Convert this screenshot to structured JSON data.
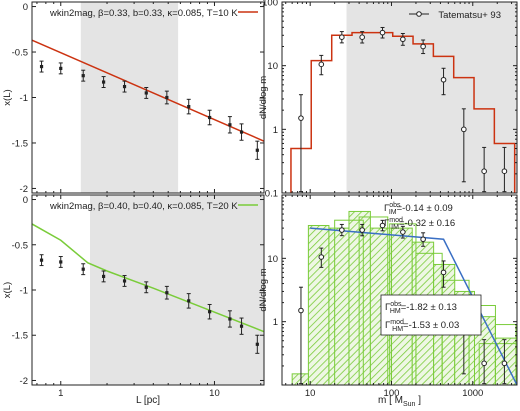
{
  "chart_data": [
    {
      "id": "top_left",
      "type": "scatter",
      "legend": {
        "label": "wkin2mag, β=0.33, b=0.33, κ=0.085, T=10 K",
        "color": "#cc3311",
        "placement": "top"
      },
      "ylabel": "x(L)",
      "xscale": "log",
      "xlim": [
        0.65,
        21
      ],
      "ylim": [
        -2.05,
        0.05
      ],
      "yticks": [
        "0",
        "-0.5",
        "-1",
        "-1.5",
        "-2"
      ],
      "yticks_values": [
        0,
        -0.5,
        -1,
        -1.5,
        -2
      ],
      "xticks_values": [
        1,
        10
      ],
      "shaded_range": [
        1.35,
        5.8
      ],
      "model_line": {
        "x": [
          0.65,
          21
        ],
        "y": [
          -0.37,
          -1.48
        ]
      },
      "points": {
        "x": [
          0.75,
          1.0,
          1.4,
          1.9,
          2.6,
          3.6,
          4.9,
          6.8,
          9.3,
          12.6,
          15.0,
          19.0
        ],
        "y": [
          -0.66,
          -0.68,
          -0.76,
          -0.83,
          -0.88,
          -0.95,
          -1.0,
          -1.1,
          -1.22,
          -1.3,
          -1.38,
          -1.58
        ],
        "err": [
          0.06,
          0.06,
          0.06,
          0.06,
          0.06,
          0.06,
          0.07,
          0.08,
          0.08,
          0.09,
          0.09,
          0.1
        ]
      }
    },
    {
      "id": "bottom_left",
      "type": "scatter",
      "legend": {
        "label": "wkin2mag, β=0.40, b=0.40, κ=0.085, T=20 K",
        "color": "#7acc3a",
        "placement": "top"
      },
      "xlabel": "L   [pc]",
      "ylabel": "x(L)",
      "xscale": "log",
      "xlim": [
        0.65,
        21
      ],
      "ylim": [
        -2.05,
        0.05
      ],
      "yticks": [
        "0",
        "-0.5",
        "-1",
        "-1.5",
        "-2"
      ],
      "yticks_values": [
        0,
        -0.5,
        -1,
        -1.5,
        -2
      ],
      "xticks": [
        "1",
        "10"
      ],
      "xticks_values": [
        1,
        10
      ],
      "shaded_range": [
        1.55,
        21
      ],
      "model_line": {
        "x": [
          0.65,
          1.0,
          1.5,
          2.0,
          4.0,
          8.0,
          21
        ],
        "y": [
          -0.27,
          -0.45,
          -0.7,
          -0.79,
          -0.98,
          -1.18,
          -1.46
        ]
      },
      "points": {
        "x": [
          0.75,
          1.0,
          1.4,
          1.9,
          2.6,
          3.6,
          4.9,
          6.8,
          9.3,
          12.6,
          15.0,
          19.0
        ],
        "y": [
          -0.67,
          -0.69,
          -0.77,
          -0.85,
          -0.9,
          -0.97,
          -1.03,
          -1.12,
          -1.24,
          -1.32,
          -1.4,
          -1.6
        ],
        "err": [
          0.06,
          0.06,
          0.06,
          0.06,
          0.06,
          0.06,
          0.07,
          0.08,
          0.08,
          0.09,
          0.09,
          0.1
        ]
      }
    },
    {
      "id": "top_right",
      "type": "line",
      "ylabel": "dN/dlog m",
      "xscale": "log",
      "yscale": "log",
      "xlim": [
        4.5,
        3500
      ],
      "ylim": [
        0.1,
        100
      ],
      "yticks": [
        "100",
        "10",
        "1",
        "0.1"
      ],
      "yticks_values": [
        100,
        10,
        1,
        0.1
      ],
      "xticks_values": [
        10,
        100,
        1000
      ],
      "shaded_range": [
        28,
        3500
      ],
      "legend": {
        "label": "Tatematsu+ 93",
        "placement": "top-right"
      },
      "model_hist": {
        "color": "#cc3311",
        "edges": [
          5.8,
          10.3,
          18.4,
          32.7,
          58.2,
          103.6,
          184.2,
          327.6,
          582.7,
          1036.3,
          1843,
          3277
        ],
        "values": [
          0.5,
          12,
          30,
          33,
          33,
          29,
          22,
          14,
          6.5,
          2.1,
          0.6
        ]
      },
      "points": {
        "x": [
          7.7,
          13.7,
          24.5,
          43.6,
          77.6,
          138,
          245,
          437,
          776,
          1380,
          2450
        ],
        "y": [
          1.5,
          10.5,
          28,
          28,
          33,
          26,
          20,
          6,
          1,
          0.22,
          0.22
        ],
        "err_lo": [
          1.45,
          3.3,
          5.2,
          5.3,
          5.8,
          5.1,
          4.5,
          2.5,
          0.85,
          0.2,
          0.2
        ],
        "err_hi": [
          2.0,
          4.0,
          6.3,
          6.3,
          6.8,
          6.0,
          5.3,
          3.1,
          1.1,
          0.3,
          0.3
        ]
      }
    },
    {
      "id": "bottom_right",
      "type": "bar",
      "xlabel": "m [ M_Sun ]",
      "ylabel": "dN/dlog m",
      "xscale": "log",
      "yscale": "log",
      "xlim": [
        4.5,
        3500
      ],
      "ylim": [
        0.1,
        100
      ],
      "yticks": [
        "10",
        "1"
      ],
      "yticks_values": [
        10,
        1
      ],
      "xticks": [
        "10",
        "100",
        "1000"
      ],
      "xticks_values": [
        10,
        100,
        1000
      ],
      "hist_color": "#7acc3a",
      "hist_bars": [
        {
          "lo": 9.5,
          "hi": 17,
          "h": 33
        },
        {
          "lo": 17,
          "hi": 30,
          "h": 30
        },
        {
          "lo": 30,
          "hi": 55,
          "h": 55
        },
        {
          "lo": 55,
          "hi": 100,
          "h": 30
        },
        {
          "lo": 100,
          "hi": 180,
          "h": 30
        },
        {
          "lo": 180,
          "hi": 330,
          "h": 18
        },
        {
          "lo": 330,
          "hi": 600,
          "h": 8
        },
        {
          "lo": 600,
          "hi": 1050,
          "h": 3
        },
        {
          "lo": 1050,
          "hi": 1900,
          "h": 1.2
        },
        {
          "lo": 1900,
          "hi": 3400,
          "h": 0.55
        },
        {
          "lo": 6,
          "hi": 9.5,
          "h": 0.15
        }
      ],
      "hist_outlines": [
        {
          "lo": 20,
          "hi": 45,
          "h": 40
        },
        {
          "lo": 40,
          "hi": 90,
          "h": 45
        },
        {
          "lo": 95,
          "hi": 200,
          "h": 35
        },
        {
          "lo": 200,
          "hi": 420,
          "h": 12
        },
        {
          "lo": 420,
          "hi": 900,
          "h": 4.5
        },
        {
          "lo": 900,
          "hi": 1900,
          "h": 1.8
        },
        {
          "lo": 1900,
          "hi": 3400,
          "h": 0.9
        },
        {
          "lo": 1200,
          "hi": 3400,
          "h": 0.45
        }
      ],
      "fit_line": {
        "color": "#3a6fc4",
        "x": [
          10,
          437,
          3500
        ],
        "y": [
          30,
          20,
          0.1
        ]
      },
      "points": {
        "x": [
          7.7,
          13.7,
          24.5,
          43.6,
          77.6,
          138,
          245,
          437,
          776,
          1380,
          2450
        ],
        "y": [
          1.5,
          10.5,
          28,
          28,
          33,
          26,
          20,
          6,
          1,
          0.22,
          0.22
        ],
        "err_lo": [
          1.45,
          3.3,
          5.2,
          5.3,
          5.8,
          5.1,
          4.5,
          2.5,
          0.85,
          0.2,
          0.2
        ],
        "err_hi": [
          2.0,
          4.0,
          6.3,
          6.3,
          6.8,
          6.0,
          5.3,
          3.1,
          1.1,
          0.3,
          0.3
        ]
      },
      "annotations": {
        "im_obs": "Γ^obs_IM=-0.14 ± 0.09",
        "im_mod": "Γ^mod_IM=-0.32 ± 0.16",
        "hm_obs": "Γ^obs_HM=-1.82 ± 0.13",
        "hm_mod": "Γ^mod_HM=-1.53 ± 0.03"
      }
    }
  ]
}
